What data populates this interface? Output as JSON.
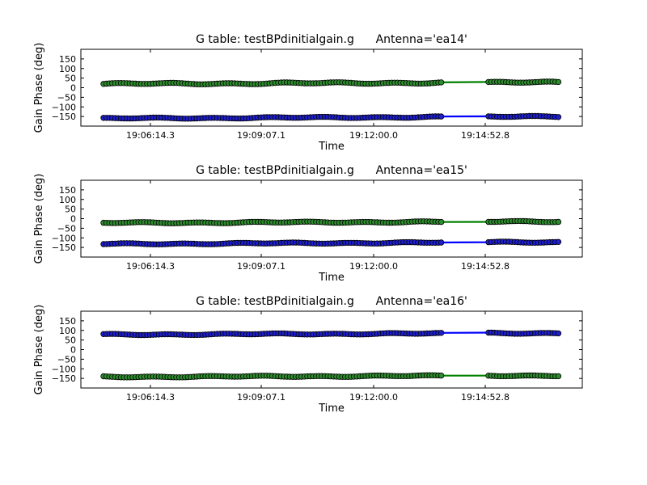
{
  "chart_data": [
    {
      "type": "scatter",
      "title": "G table: testBPdinitialgain.g      Antenna='ea14'",
      "xlabel": "Time",
      "ylabel": "Gain Phase (deg)",
      "xticks": [
        "19:06:14.3",
        "19:09:07.1",
        "19:12:00.0",
        "19:14:52.8"
      ],
      "yticks": [
        "150",
        "100",
        "50",
        "0",
        "−50",
        "−100",
        "−150"
      ],
      "ylim": [
        -200,
        200
      ],
      "grid": false,
      "series": [
        {
          "color": "#008000",
          "marker_fill": "#2e8b2e",
          "y_start": 20,
          "y_end": 28,
          "wobble": 5
        },
        {
          "color": "#0000ff",
          "marker_fill": "#1f1fcc",
          "y_start": -160,
          "y_end": -150,
          "wobble": 4
        }
      ]
    },
    {
      "type": "scatter",
      "title": "G table: testBPdinitialgain.g      Antenna='ea15'",
      "xlabel": "Time",
      "ylabel": "Gain Phase (deg)",
      "xticks": [
        "19:06:14.3",
        "19:09:07.1",
        "19:12:00.0",
        "19:14:52.8"
      ],
      "yticks": [
        "150",
        "100",
        "50",
        "0",
        "−50",
        "−100",
        "−150"
      ],
      "ylim": [
        -200,
        200
      ],
      "grid": false,
      "series": [
        {
          "color": "#008000",
          "marker_fill": "#2e8b2e",
          "y_start": -22,
          "y_end": -15,
          "wobble": 4
        },
        {
          "color": "#0000ff",
          "marker_fill": "#1f1fcc",
          "y_start": -132,
          "y_end": -122,
          "wobble": 4
        }
      ]
    },
    {
      "type": "scatter",
      "title": "G table: testBPdinitialgain.g      Antenna='ea16'",
      "xlabel": "Time",
      "ylabel": "Gain Phase (deg)",
      "xticks": [
        "19:06:14.3",
        "19:09:07.1",
        "19:12:00.0",
        "19:14:52.8"
      ],
      "yticks": [
        "150",
        "100",
        "50",
        "0",
        "−50",
        "−100",
        "−150"
      ],
      "ylim": [
        -200,
        200
      ],
      "grid": false,
      "series": [
        {
          "color": "#0000ff",
          "marker_fill": "#1f1fcc",
          "y_start": 78,
          "y_end": 86,
          "wobble": 4
        },
        {
          "color": "#008000",
          "marker_fill": "#2e8b2e",
          "y_start": -142,
          "y_end": -135,
          "wobble": 4
        }
      ]
    }
  ]
}
